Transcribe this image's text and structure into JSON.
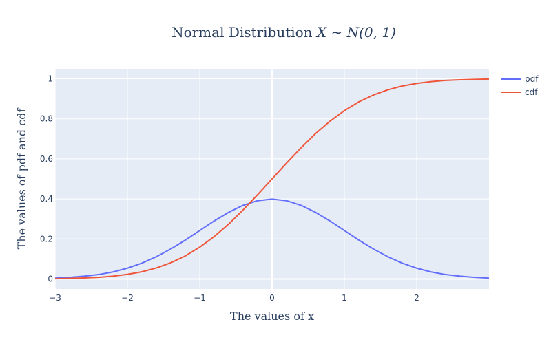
{
  "chart_data": {
    "type": "line",
    "title": "Normal Distribution X ∼ N(0, 1)",
    "title_parts": {
      "prefix": "Normal Distribution ",
      "math": "X ∼ N(0, 1)"
    },
    "xlabel": "The values of x",
    "ylabel": "The values of pdf and cdf",
    "xlim": [
      -3,
      3
    ],
    "ylim": [
      -0.05,
      1.05
    ],
    "x_ticks": [
      -3,
      -2,
      -1,
      0,
      1,
      2
    ],
    "x_tick_labels": [
      "−3",
      "−2",
      "−1",
      "0",
      "1",
      "2"
    ],
    "y_ticks": [
      0,
      0.2,
      0.4,
      0.6,
      0.8,
      1
    ],
    "y_tick_labels": [
      "0",
      "0.2",
      "0.4",
      "0.6",
      "0.8",
      "1"
    ],
    "grid": true,
    "legend_position": "top-right",
    "x": [
      -3.0,
      -2.8,
      -2.6,
      -2.4,
      -2.2,
      -2.0,
      -1.8,
      -1.6,
      -1.4,
      -1.2,
      -1.0,
      -0.8,
      -0.6,
      -0.4,
      -0.2,
      0.0,
      0.2,
      0.4,
      0.6,
      0.8,
      1.0,
      1.2,
      1.4,
      1.6,
      1.8,
      2.0,
      2.2,
      2.4,
      2.6,
      2.8,
      3.0
    ],
    "series": [
      {
        "name": "pdf",
        "color": "#636efa",
        "values": [
          0.004,
          0.008,
          0.014,
          0.022,
          0.035,
          0.054,
          0.079,
          0.111,
          0.15,
          0.194,
          0.242,
          0.29,
          0.333,
          0.368,
          0.391,
          0.399,
          0.391,
          0.368,
          0.333,
          0.29,
          0.242,
          0.194,
          0.15,
          0.111,
          0.079,
          0.054,
          0.035,
          0.022,
          0.014,
          0.008,
          0.004
        ]
      },
      {
        "name": "cdf",
        "color": "#ef553b",
        "values": [
          0.001,
          0.003,
          0.005,
          0.008,
          0.014,
          0.023,
          0.036,
          0.055,
          0.081,
          0.115,
          0.159,
          0.212,
          0.274,
          0.345,
          0.421,
          0.5,
          0.579,
          0.655,
          0.726,
          0.788,
          0.841,
          0.885,
          0.919,
          0.945,
          0.964,
          0.977,
          0.986,
          0.992,
          0.995,
          0.997,
          0.999
        ]
      }
    ]
  },
  "colors": {
    "plot_background": "#e5ecf6",
    "grid": "#ffffff",
    "text": "#2a3f5f"
  }
}
